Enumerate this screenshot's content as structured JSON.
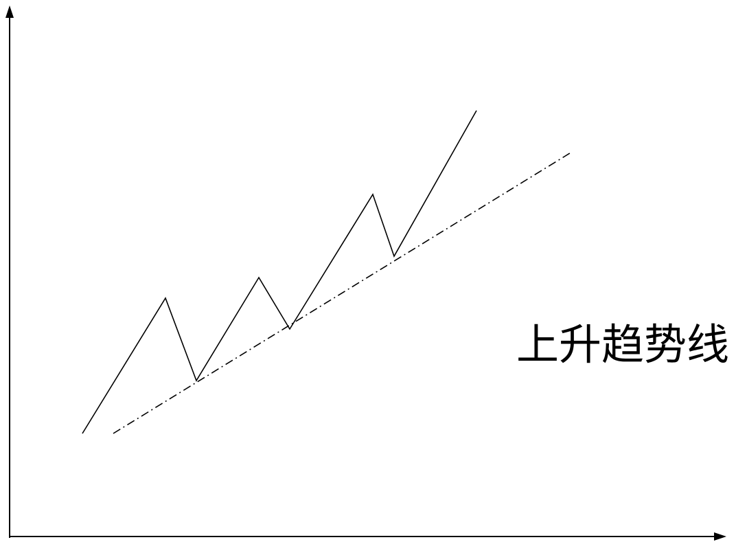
{
  "diagram": {
    "label": "上升趋势线",
    "line_color": "#000000",
    "background": "#ffffff",
    "elements": [
      "y-axis-arrow",
      "x-axis-arrow",
      "price-zigzag-line",
      "rising-trendline-dash-dot"
    ]
  }
}
